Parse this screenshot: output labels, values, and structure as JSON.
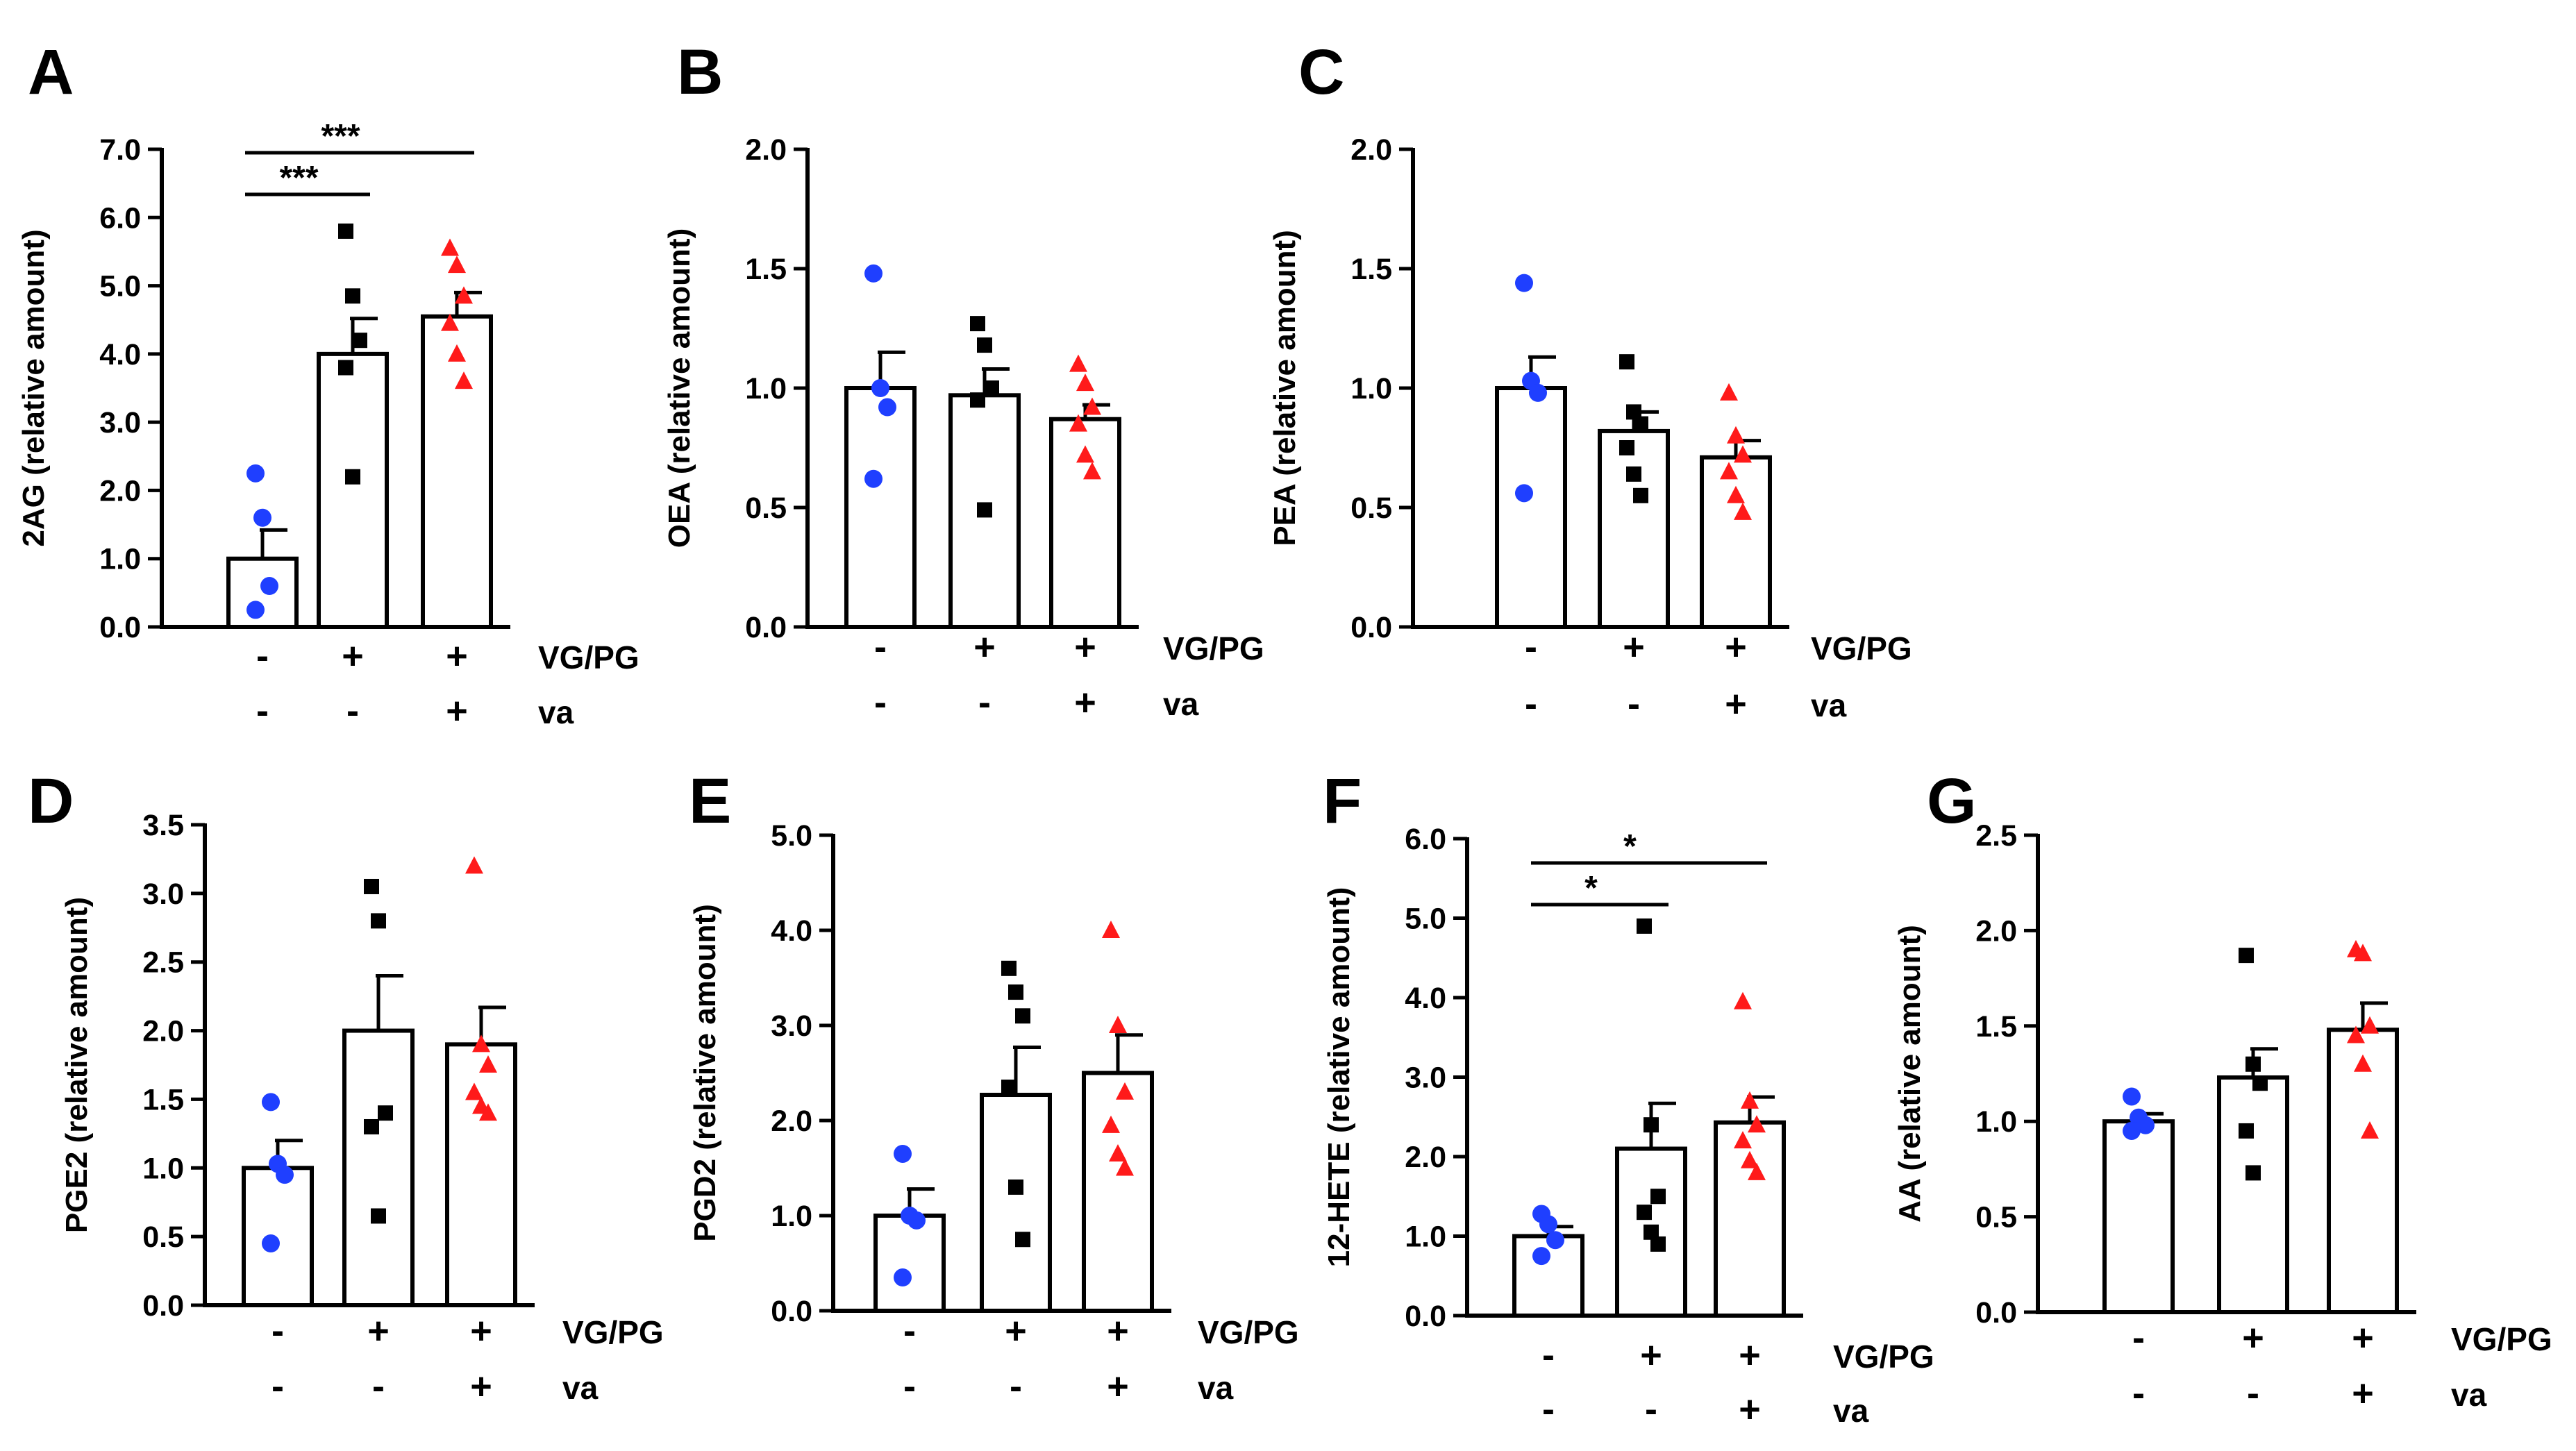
{
  "chart_data": [
    {
      "panel_label": "A",
      "type": "bar",
      "ylabel": "2AG (relative amount)",
      "ylim": [
        0,
        7
      ],
      "yticks": [
        "0.0",
        "1.0",
        "2.0",
        "3.0",
        "4.0",
        "5.0",
        "6.0",
        "7.0"
      ],
      "ytick_values": [
        0,
        1,
        2,
        3,
        4,
        5,
        6,
        7
      ],
      "row_labels": [
        "VG/PG",
        "va"
      ],
      "groups": [
        {
          "vgpg": "-",
          "va": "-",
          "mean": 1.0,
          "sem": 0.42,
          "marker": "circle",
          "color": "#1f3fff",
          "points": [
            2.25,
            1.6,
            0.6,
            0.25
          ]
        },
        {
          "vgpg": "+",
          "va": "-",
          "mean": 4.0,
          "sem": 0.52,
          "marker": "square",
          "color": "#000000",
          "points": [
            5.8,
            4.85,
            4.2,
            3.8,
            2.2
          ]
        },
        {
          "vgpg": "+",
          "va": "+",
          "mean": 4.55,
          "sem": 0.35,
          "marker": "triangle",
          "color": "#ff1a1a",
          "points": [
            5.55,
            5.3,
            4.85,
            4.45,
            4.0,
            3.6
          ]
        }
      ],
      "significance": [
        {
          "from": 0,
          "to": 1,
          "label": "***"
        },
        {
          "from": 0,
          "to": 2,
          "label": "***"
        }
      ]
    },
    {
      "panel_label": "B",
      "type": "bar",
      "ylabel": "OEA (relative amount)",
      "ylim": [
        0,
        2
      ],
      "yticks": [
        "0.0",
        "0.5",
        "1.0",
        "1.5",
        "2.0"
      ],
      "ytick_values": [
        0,
        0.5,
        1,
        1.5,
        2
      ],
      "row_labels": [
        "VG/PG",
        "va"
      ],
      "groups": [
        {
          "vgpg": "-",
          "va": "-",
          "mean": 1.0,
          "sem": 0.15,
          "marker": "circle",
          "color": "#1f3fff",
          "points": [
            1.48,
            1.0,
            0.92,
            0.62
          ]
        },
        {
          "vgpg": "+",
          "va": "-",
          "mean": 0.97,
          "sem": 0.11,
          "marker": "square",
          "color": "#000000",
          "points": [
            1.27,
            1.18,
            1.0,
            0.95,
            0.49
          ]
        },
        {
          "vgpg": "+",
          "va": "+",
          "mean": 0.87,
          "sem": 0.06,
          "marker": "triangle",
          "color": "#ff1a1a",
          "points": [
            1.1,
            1.02,
            0.92,
            0.85,
            0.72,
            0.65
          ]
        }
      ]
    },
    {
      "panel_label": "C",
      "type": "bar",
      "ylabel": "PEA (relative amount)",
      "ylim": [
        0,
        2
      ],
      "yticks": [
        "0.0",
        "0.5",
        "1.0",
        "1.5",
        "2.0"
      ],
      "ytick_values": [
        0,
        0.5,
        1,
        1.5,
        2
      ],
      "row_labels": [
        "VG/PG",
        "va"
      ],
      "groups": [
        {
          "vgpg": "-",
          "va": "-",
          "mean": 1.0,
          "sem": 0.13,
          "marker": "circle",
          "color": "#1f3fff",
          "points": [
            1.44,
            1.03,
            0.98,
            0.56
          ]
        },
        {
          "vgpg": "+",
          "va": "-",
          "mean": 0.82,
          "sem": 0.08,
          "marker": "square",
          "color": "#000000",
          "points": [
            1.11,
            0.9,
            0.85,
            0.75,
            0.64,
            0.55
          ]
        },
        {
          "vgpg": "+",
          "va": "+",
          "mean": 0.71,
          "sem": 0.07,
          "marker": "triangle",
          "color": "#ff1a1a",
          "points": [
            0.98,
            0.8,
            0.72,
            0.65,
            0.55,
            0.48
          ]
        }
      ]
    },
    {
      "panel_label": "D",
      "type": "bar",
      "ylabel": "PGE2 (relative amount)",
      "ylim": [
        0,
        3.5
      ],
      "yticks": [
        "0.0",
        "0.5",
        "1.0",
        "1.5",
        "2.0",
        "2.5",
        "3.0",
        "3.5"
      ],
      "ytick_values": [
        0,
        0.5,
        1,
        1.5,
        2,
        2.5,
        3,
        3.5
      ],
      "row_labels": [
        "VG/PG",
        "va"
      ],
      "groups": [
        {
          "vgpg": "-",
          "va": "-",
          "mean": 1.0,
          "sem": 0.2,
          "marker": "circle",
          "color": "#1f3fff",
          "points": [
            1.48,
            1.03,
            0.95,
            0.45
          ]
        },
        {
          "vgpg": "+",
          "va": "-",
          "mean": 2.0,
          "sem": 0.4,
          "marker": "square",
          "color": "#000000",
          "points": [
            3.05,
            2.8,
            1.4,
            1.3,
            0.65
          ]
        },
        {
          "vgpg": "+",
          "va": "+",
          "mean": 1.9,
          "sem": 0.27,
          "marker": "triangle",
          "color": "#ff1a1a",
          "points": [
            3.2,
            1.9,
            1.75,
            1.55,
            1.45,
            1.4
          ]
        }
      ]
    },
    {
      "panel_label": "E",
      "type": "bar",
      "ylabel": "PGD2 (relative amount)",
      "ylim": [
        0,
        5
      ],
      "yticks": [
        "0.0",
        "1.0",
        "2.0",
        "3.0",
        "4.0",
        "5.0"
      ],
      "ytick_values": [
        0,
        1,
        2,
        3,
        4,
        5
      ],
      "row_labels": [
        "VG/PG",
        "va"
      ],
      "groups": [
        {
          "vgpg": "-",
          "va": "-",
          "mean": 1.0,
          "sem": 0.28,
          "marker": "circle",
          "color": "#1f3fff",
          "points": [
            1.65,
            1.0,
            0.95,
            0.35
          ]
        },
        {
          "vgpg": "+",
          "va": "-",
          "mean": 2.27,
          "sem": 0.5,
          "marker": "square",
          "color": "#000000",
          "points": [
            3.6,
            3.35,
            3.1,
            2.35,
            1.3,
            0.75
          ]
        },
        {
          "vgpg": "+",
          "va": "+",
          "mean": 2.5,
          "sem": 0.4,
          "marker": "triangle",
          "color": "#ff1a1a",
          "points": [
            4.0,
            3.0,
            2.3,
            1.95,
            1.65,
            1.5
          ]
        }
      ]
    },
    {
      "panel_label": "F",
      "type": "bar",
      "ylabel": "12-HETE (relative amount)",
      "ylim": [
        0,
        6
      ],
      "yticks": [
        "0.0",
        "1.0",
        "2.0",
        "3.0",
        "4.0",
        "5.0",
        "6.0"
      ],
      "ytick_values": [
        0,
        1,
        2,
        3,
        4,
        5,
        6
      ],
      "row_labels": [
        "VG/PG",
        "va"
      ],
      "groups": [
        {
          "vgpg": "-",
          "va": "-",
          "mean": 1.0,
          "sem": 0.12,
          "marker": "circle",
          "color": "#1f3fff",
          "points": [
            1.28,
            1.15,
            0.95,
            0.75
          ]
        },
        {
          "vgpg": "+",
          "va": "-",
          "mean": 2.1,
          "sem": 0.57,
          "marker": "square",
          "color": "#000000",
          "points": [
            4.9,
            2.4,
            1.5,
            1.3,
            1.05,
            0.9
          ]
        },
        {
          "vgpg": "+",
          "va": "+",
          "mean": 2.43,
          "sem": 0.32,
          "marker": "triangle",
          "color": "#ff1a1a",
          "points": [
            3.95,
            2.7,
            2.4,
            2.2,
            1.95,
            1.8
          ]
        }
      ],
      "significance": [
        {
          "from": 0,
          "to": 1,
          "label": "*"
        },
        {
          "from": 0,
          "to": 2,
          "label": "*"
        }
      ]
    },
    {
      "panel_label": "G",
      "type": "bar",
      "ylabel": "AA (relative amount)",
      "ylim": [
        0,
        2.5
      ],
      "yticks": [
        "0.0",
        "0.5",
        "1.0",
        "1.5",
        "2.0",
        "2.5"
      ],
      "ytick_values": [
        0,
        0.5,
        1,
        1.5,
        2,
        2.5
      ],
      "row_labels": [
        "VG/PG",
        "va"
      ],
      "groups": [
        {
          "vgpg": "-",
          "va": "-",
          "mean": 1.0,
          "sem": 0.04,
          "marker": "circle",
          "color": "#1f3fff",
          "points": [
            1.13,
            1.02,
            0.98,
            0.95
          ]
        },
        {
          "vgpg": "+",
          "va": "-",
          "mean": 1.23,
          "sem": 0.15,
          "marker": "square",
          "color": "#000000",
          "points": [
            1.87,
            1.3,
            1.2,
            0.95,
            0.73
          ]
        },
        {
          "vgpg": "+",
          "va": "+",
          "mean": 1.48,
          "sem": 0.14,
          "marker": "triangle",
          "color": "#ff1a1a",
          "points": [
            1.9,
            1.88,
            1.5,
            1.45,
            1.3,
            0.95
          ]
        }
      ]
    }
  ]
}
